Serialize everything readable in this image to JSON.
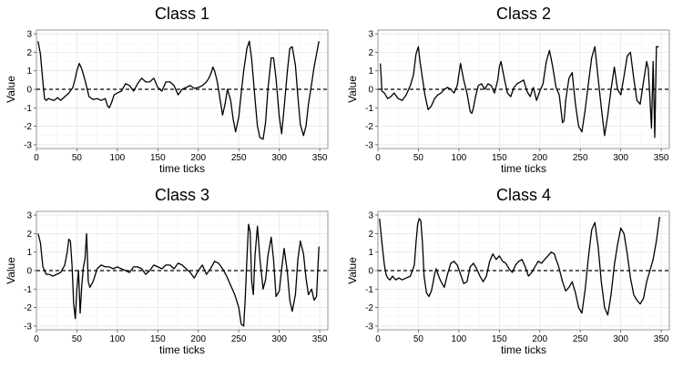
{
  "chart_data": [
    {
      "type": "line",
      "title": "Class 1",
      "xlabel": "time ticks",
      "ylabel": "Value",
      "xlim": [
        0,
        360
      ],
      "ylim": [
        -3.2,
        3.2
      ],
      "xticks": [
        0,
        50,
        100,
        150,
        200,
        250,
        300,
        350
      ],
      "yticks": [
        -3,
        -2,
        -1,
        0,
        1,
        2,
        3
      ],
      "grid": true,
      "reference_line": {
        "y": 0,
        "style": "dashed"
      },
      "series": [
        {
          "x": [
            2,
            5,
            8,
            10,
            12,
            15,
            18,
            22,
            26,
            30,
            35,
            40,
            45,
            48,
            50,
            53,
            56,
            60,
            65,
            70,
            75,
            80,
            85,
            88,
            90,
            93,
            96,
            100,
            105,
            110,
            115,
            120,
            125,
            130,
            135,
            140,
            145,
            150,
            155,
            160,
            165,
            170,
            175,
            180,
            185,
            190,
            195,
            200,
            205,
            210,
            213,
            216,
            218,
            220,
            223,
            226,
            230,
            233,
            236,
            240,
            243,
            246,
            250,
            253,
            256,
            260,
            263,
            266,
            270,
            273,
            276,
            280,
            283,
            286,
            290,
            293,
            296,
            300,
            303,
            306,
            310,
            313,
            316,
            320,
            323,
            326,
            330,
            333,
            336,
            340,
            343,
            346,
            349
          ],
          "values": [
            2.6,
            1.9,
            0.4,
            -0.5,
            -0.6,
            -0.5,
            -0.55,
            -0.6,
            -0.45,
            -0.6,
            -0.4,
            -0.2,
            0.1,
            0.6,
            1.0,
            1.4,
            1.1,
            0.5,
            -0.4,
            -0.55,
            -0.5,
            -0.6,
            -0.5,
            -0.9,
            -1.0,
            -0.7,
            -0.3,
            -0.2,
            -0.1,
            0.3,
            0.2,
            -0.1,
            0.3,
            0.6,
            0.4,
            0.4,
            0.6,
            0.1,
            -0.1,
            0.4,
            0.4,
            0.2,
            -0.3,
            0.0,
            0.1,
            0.2,
            0.05,
            0.1,
            0.2,
            0.4,
            0.6,
            0.9,
            1.2,
            1.0,
            0.5,
            -0.3,
            -1.4,
            -0.8,
            0.0,
            -0.6,
            -1.6,
            -2.3,
            -1.5,
            -0.2,
            1.0,
            2.2,
            2.6,
            1.6,
            -0.5,
            -2.0,
            -2.6,
            -2.7,
            -1.8,
            0.0,
            1.7,
            1.7,
            0.6,
            -1.5,
            -2.4,
            -1.0,
            1.0,
            2.2,
            2.3,
            1.3,
            -0.4,
            -1.9,
            -2.5,
            -2.0,
            -0.8,
            0.3,
            1.2,
            1.9,
            2.6
          ]
        }
      ]
    },
    {
      "type": "line",
      "title": "Class 2",
      "xlabel": "time ticks",
      "ylabel": "Value",
      "xlim": [
        0,
        360
      ],
      "ylim": [
        -3.2,
        3.2
      ],
      "xticks": [
        0,
        50,
        100,
        150,
        200,
        250,
        300,
        350
      ],
      "yticks": [
        -3,
        -2,
        -1,
        0,
        1,
        2,
        3
      ],
      "grid": true,
      "reference_line": {
        "y": 0,
        "style": "dashed"
      },
      "series": [
        {
          "x": [
            3,
            5,
            8,
            12,
            16,
            20,
            25,
            30,
            35,
            40,
            44,
            47,
            50,
            52,
            55,
            58,
            62,
            66,
            70,
            74,
            78,
            82,
            86,
            90,
            94,
            98,
            102,
            106,
            110,
            114,
            116,
            118,
            120,
            124,
            128,
            132,
            136,
            140,
            144,
            148,
            150,
            152,
            156,
            160,
            164,
            168,
            172,
            176,
            180,
            184,
            188,
            192,
            196,
            200,
            204,
            208,
            212,
            216,
            220,
            224,
            228,
            230,
            232,
            236,
            240,
            244,
            248,
            252,
            256,
            260,
            264,
            268,
            272,
            276,
            280,
            284,
            288,
            292,
            296,
            300,
            304,
            308,
            312,
            316,
            320,
            324,
            328,
            332,
            334,
            336,
            338,
            340,
            342,
            344,
            347
          ],
          "values": [
            1.4,
            -0.1,
            -0.2,
            -0.5,
            -0.4,
            -0.2,
            -0.5,
            -0.6,
            -0.3,
            0.2,
            0.8,
            1.9,
            2.3,
            1.5,
            0.6,
            -0.3,
            -1.1,
            -0.9,
            -0.5,
            -0.3,
            -0.2,
            0.0,
            0.1,
            0.0,
            -0.2,
            0.2,
            1.4,
            0.5,
            -0.2,
            -1.2,
            -1.3,
            -1.0,
            -0.5,
            0.2,
            0.3,
            0.0,
            0.3,
            0.2,
            -0.2,
            0.5,
            1.2,
            1.5,
            0.6,
            -0.2,
            -0.4,
            0.1,
            0.3,
            0.4,
            0.5,
            -0.1,
            -0.4,
            0.1,
            -0.6,
            -0.1,
            0.3,
            1.5,
            2.1,
            1.2,
            0.1,
            -0.3,
            -1.8,
            -1.7,
            -0.6,
            0.6,
            0.9,
            -0.8,
            -2.0,
            -2.3,
            -1.1,
            0.3,
            1.7,
            2.3,
            0.6,
            -1.0,
            -2.5,
            -1.4,
            0.0,
            1.2,
            0.0,
            -0.3,
            0.7,
            1.8,
            2.0,
            0.6,
            -0.6,
            -0.8,
            0.4,
            1.5,
            1.1,
            -0.5,
            -2.1,
            1.5,
            -2.6,
            2.3,
            2.3
          ]
        }
      ]
    },
    {
      "type": "line",
      "title": "Class 3",
      "xlabel": "time ticks",
      "ylabel": "Value",
      "xlim": [
        0,
        360
      ],
      "ylim": [
        -3.2,
        3.2
      ],
      "xticks": [
        0,
        50,
        100,
        150,
        200,
        250,
        300,
        350
      ],
      "yticks": [
        -3,
        -2,
        -1,
        0,
        1,
        2,
        3
      ],
      "grid": true,
      "reference_line": {
        "y": 0,
        "style": "dashed"
      },
      "series": [
        {
          "x": [
            2,
            5,
            8,
            12,
            16,
            20,
            25,
            30,
            35,
            38,
            40,
            42,
            44,
            46,
            48,
            50,
            52,
            54,
            56,
            58,
            60,
            62,
            64,
            66,
            70,
            75,
            80,
            85,
            90,
            95,
            100,
            105,
            110,
            115,
            120,
            125,
            130,
            135,
            140,
            145,
            150,
            155,
            160,
            165,
            170,
            175,
            180,
            185,
            190,
            195,
            200,
            205,
            210,
            215,
            220,
            225,
            230,
            235,
            240,
            245,
            250,
            253,
            256,
            258,
            260,
            262,
            264,
            266,
            268,
            270,
            273,
            276,
            280,
            283,
            286,
            290,
            293,
            296,
            300,
            303,
            306,
            310,
            313,
            316,
            320,
            323,
            326,
            330,
            333,
            336,
            340,
            343,
            346,
            349
          ],
          "values": [
            2.0,
            1.5,
            0.2,
            -0.2,
            -0.2,
            -0.3,
            -0.2,
            -0.1,
            0.3,
            1.0,
            1.7,
            1.6,
            0.3,
            -1.8,
            -2.6,
            -1.0,
            0.0,
            -2.3,
            -0.8,
            0.2,
            0.6,
            2.0,
            -0.6,
            -0.9,
            -0.6,
            0.1,
            0.3,
            0.2,
            0.2,
            0.1,
            0.2,
            0.1,
            0.0,
            -0.1,
            0.2,
            0.2,
            0.1,
            -0.2,
            0.0,
            0.3,
            0.2,
            0.1,
            0.3,
            0.3,
            0.1,
            0.4,
            0.3,
            0.1,
            -0.1,
            -0.4,
            0.0,
            0.3,
            -0.2,
            0.1,
            0.5,
            0.4,
            0.1,
            -0.3,
            -0.8,
            -1.3,
            -2.0,
            -2.9,
            -3.0,
            -1.5,
            0.6,
            2.5,
            2.1,
            -0.6,
            -1.3,
            0.8,
            2.4,
            0.7,
            -1.0,
            -0.5,
            0.8,
            1.8,
            0.6,
            -1.4,
            -1.1,
            0.1,
            1.2,
            -0.1,
            -1.6,
            -2.2,
            -1.3,
            0.6,
            1.6,
            0.9,
            -0.4,
            -1.3,
            -1.0,
            -1.6,
            -1.4,
            1.3
          ]
        }
      ]
    },
    {
      "type": "line",
      "title": "Class 4",
      "xlabel": "time ticks",
      "ylabel": "Value",
      "xlim": [
        0,
        360
      ],
      "ylim": [
        -3.2,
        3.2
      ],
      "xticks": [
        0,
        50,
        100,
        150,
        200,
        250,
        300,
        350
      ],
      "yticks": [
        -3,
        -2,
        -1,
        0,
        1,
        2,
        3
      ],
      "grid": true,
      "reference_line": {
        "y": 0,
        "style": "dashed"
      },
      "series": [
        {
          "x": [
            2,
            5,
            8,
            10,
            12,
            15,
            18,
            22,
            26,
            30,
            35,
            40,
            45,
            47,
            49,
            51,
            53,
            55,
            57,
            60,
            63,
            66,
            68,
            70,
            72,
            75,
            78,
            82,
            86,
            90,
            94,
            98,
            102,
            106,
            110,
            114,
            118,
            122,
            126,
            130,
            134,
            138,
            142,
            146,
            150,
            154,
            158,
            162,
            166,
            170,
            174,
            178,
            182,
            186,
            190,
            194,
            198,
            202,
            206,
            210,
            214,
            218,
            220,
            222,
            224,
            228,
            232,
            236,
            240,
            244,
            248,
            252,
            256,
            260,
            264,
            268,
            272,
            276,
            280,
            284,
            288,
            292,
            296,
            300,
            304,
            308,
            312,
            316,
            320,
            324,
            328,
            332,
            336,
            340,
            344,
            348
          ],
          "values": [
            2.8,
            1.5,
            0.3,
            -0.2,
            -0.4,
            -0.5,
            -0.3,
            -0.5,
            -0.4,
            -0.5,
            -0.4,
            -0.3,
            0.3,
            1.5,
            2.5,
            2.8,
            2.7,
            1.5,
            -0.3,
            -1.2,
            -1.4,
            -1.1,
            -0.7,
            -0.2,
            0.1,
            -0.3,
            -0.6,
            -0.9,
            -0.2,
            0.4,
            0.5,
            0.3,
            -0.2,
            -0.7,
            -0.6,
            0.2,
            0.4,
            0.1,
            -0.3,
            -0.6,
            -0.3,
            0.5,
            0.9,
            0.6,
            0.8,
            0.5,
            0.4,
            0.1,
            -0.1,
            0.3,
            0.5,
            0.6,
            0.2,
            -0.3,
            -0.1,
            0.2,
            0.5,
            0.4,
            0.6,
            0.8,
            1.0,
            0.9,
            0.6,
            0.4,
            0.1,
            -0.6,
            -1.1,
            -0.9,
            -0.6,
            -1.2,
            -2.0,
            -2.3,
            -1.0,
            0.7,
            2.2,
            2.6,
            1.3,
            -0.6,
            -2.0,
            -2.4,
            -1.3,
            0.3,
            1.4,
            2.3,
            2.0,
            0.9,
            -0.4,
            -1.3,
            -1.6,
            -1.8,
            -1.5,
            -0.6,
            0.0,
            0.6,
            1.6,
            2.9
          ]
        }
      ]
    }
  ]
}
